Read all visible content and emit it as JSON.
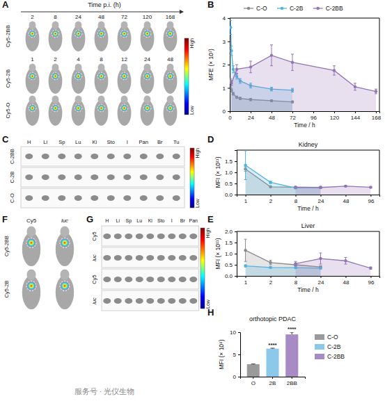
{
  "chart_data": [
    {
      "type": "line",
      "y_label": "MFE (× 10⁷)",
      "x_label": "Time / h",
      "xlim": [
        0,
        172
      ],
      "xticks": [
        0,
        24,
        48,
        72,
        96,
        120,
        144,
        168
      ],
      "ylim": [
        0,
        4
      ],
      "yticks": [
        0,
        1,
        2,
        3,
        4
      ],
      "legend": "top",
      "marker": "circle",
      "series": [
        {
          "name": "C-O",
          "color": "#8a8a8a",
          "x": [
            1,
            2,
            4,
            8,
            12,
            24,
            48,
            72
          ],
          "values": [
            1.3,
            0.9,
            0.75,
            0.6,
            0.55,
            0.5,
            0.45,
            0.4
          ],
          "errors": [
            0.1,
            0.08,
            0.06,
            0.05,
            0.05,
            0.05,
            0.04,
            0.04
          ]
        },
        {
          "name": "C-2B",
          "color": "#4fb3e0",
          "x": [
            1,
            2,
            4,
            8,
            12,
            24,
            48,
            72
          ],
          "values": [
            3.6,
            2.6,
            1.8,
            1.5,
            1.3,
            1.1,
            0.95,
            0.9
          ],
          "errors": [
            0.3,
            0.2,
            0.15,
            0.12,
            0.1,
            0.1,
            0.08,
            0.08
          ]
        },
        {
          "name": "C-2BB",
          "color": "#9474b4",
          "x": [
            2,
            8,
            24,
            48,
            72,
            120,
            144,
            168
          ],
          "values": [
            1.2,
            1.8,
            1.9,
            2.4,
            2.1,
            1.75,
            1.05,
            0.85
          ],
          "errors": [
            0.1,
            0.2,
            0.25,
            0.45,
            0.35,
            0.2,
            0.15,
            0.1
          ]
        }
      ]
    },
    {
      "type": "line",
      "title": "Kidney",
      "y_label": "MFI (× 10¹¹)",
      "x_label": "Time / h",
      "categories": [
        1,
        2,
        8,
        24,
        48,
        96
      ],
      "ylim": [
        0,
        2
      ],
      "yticks": [
        {
          "value": 0,
          "label": "0.0"
        },
        0.5,
        {
          "value": 1,
          "label": "1.0"
        },
        1.5
      ],
      "marker": "circle",
      "series": [
        {
          "name": "C-O",
          "color": "#8a8a8a",
          "values": [
            1.15,
            0.35,
            0.33,
            0.32,
            null,
            null
          ],
          "errors": [
            0.1,
            0.03,
            0.03,
            0.03,
            null,
            null
          ]
        },
        {
          "name": "C-2B",
          "color": "#4fb3e0",
          "values": [
            1.32,
            0.55,
            0.3,
            0.33,
            null,
            null
          ],
          "errors": [
            0.65,
            0.05,
            0.03,
            0.03,
            null,
            null
          ]
        },
        {
          "name": "C-2BB",
          "color": "#9474b4",
          "values": [
            null,
            null,
            0.33,
            0.32,
            0.38,
            0.33
          ],
          "errors": [
            null,
            null,
            0.03,
            0.03,
            0.03,
            0.03
          ]
        }
      ]
    },
    {
      "type": "line",
      "title": "Liver",
      "y_label": "MFI (× 10¹¹)",
      "x_label": "Time / h",
      "categories": [
        1,
        2,
        8,
        24,
        48,
        96
      ],
      "ylim": [
        0,
        2
      ],
      "yticks": [
        {
          "value": 0,
          "label": "0.0"
        },
        0.5,
        {
          "value": 1,
          "label": "1.0"
        },
        1.5,
        {
          "value": 2,
          "label": "2.0"
        }
      ],
      "marker": "circle",
      "series": [
        {
          "name": "C-O",
          "color": "#8a8a8a",
          "values": [
            1.15,
            0.6,
            0.5,
            0.4,
            null,
            null
          ],
          "errors": [
            0.5,
            0.1,
            0.05,
            0.05,
            null,
            null
          ]
        },
        {
          "name": "C-2B",
          "color": "#4fb3e0",
          "values": [
            0.45,
            0.38,
            0.37,
            0.35,
            null,
            null
          ],
          "errors": [
            0.05,
            0.04,
            0.04,
            0.04,
            null,
            null
          ]
        },
        {
          "name": "C-2BB",
          "color": "#9474b4",
          "values": [
            null,
            null,
            0.55,
            0.78,
            0.68,
            0.35
          ],
          "errors": [
            null,
            null,
            0.1,
            0.25,
            0.15,
            0.05
          ]
        }
      ]
    },
    {
      "type": "bar",
      "title": "orthotopic PDAC",
      "y_label": "MFI (× 10⁸)",
      "categories": [
        "O",
        "2B",
        "2BB"
      ],
      "values": [
        2.8,
        6.3,
        9.5
      ],
      "errors": [
        0.05,
        0.1,
        0.5
      ],
      "colors": [
        "#9a9a9a",
        "#8cc8ea",
        "#a88bc4"
      ],
      "legend_labels": [
        "C-O",
        "C-2B",
        "C-2BB"
      ],
      "legend": "right",
      "ylim": [
        0,
        10
      ],
      "yticks": [
        0,
        5,
        10
      ],
      "annotations": [
        {
          "x": "2B",
          "text": "****"
        },
        {
          "x": "2BB",
          "text": "****"
        }
      ]
    }
  ],
  "panels": {
    "letters": [
      "A",
      "B",
      "C",
      "D",
      "E",
      "F",
      "G",
      "H"
    ],
    "A": {
      "axis_title": "Time p.i. (h)",
      "rows": [
        {
          "label": "Cy5-2BB",
          "times": [
            2,
            8,
            24,
            48,
            72,
            120,
            168
          ]
        },
        {
          "label": "Cy5-2B",
          "times": [
            1,
            2,
            4,
            8,
            12,
            24,
            48
          ]
        },
        {
          "label": "Cy5-O"
        }
      ],
      "colorbar": [
        "High",
        "Low"
      ]
    },
    "C": {
      "organs": [
        "H",
        "Li",
        "Sp",
        "Lu",
        "Ki",
        "Sto",
        "I",
        "Pan",
        "Br",
        "Tu"
      ],
      "rows": [
        "C-2BB",
        "C-2B",
        "C-O"
      ],
      "colorbar": [
        "High",
        "Low"
      ]
    },
    "F": {
      "columns": [
        "Cy5",
        "luc"
      ],
      "rows": [
        "Cy5-2BB",
        "Cy5-2B"
      ]
    },
    "G": {
      "organs": [
        "H",
        "Li",
        "Sp",
        "Lu",
        "Ki",
        "Sto",
        "I",
        "Br",
        "Pan"
      ],
      "rows": [
        "Cy5",
        "luc",
        "Cy5",
        "luc"
      ],
      "colorbar": [
        "High",
        "Low"
      ]
    },
    "watermark": "服务号 · 光仪生物"
  }
}
